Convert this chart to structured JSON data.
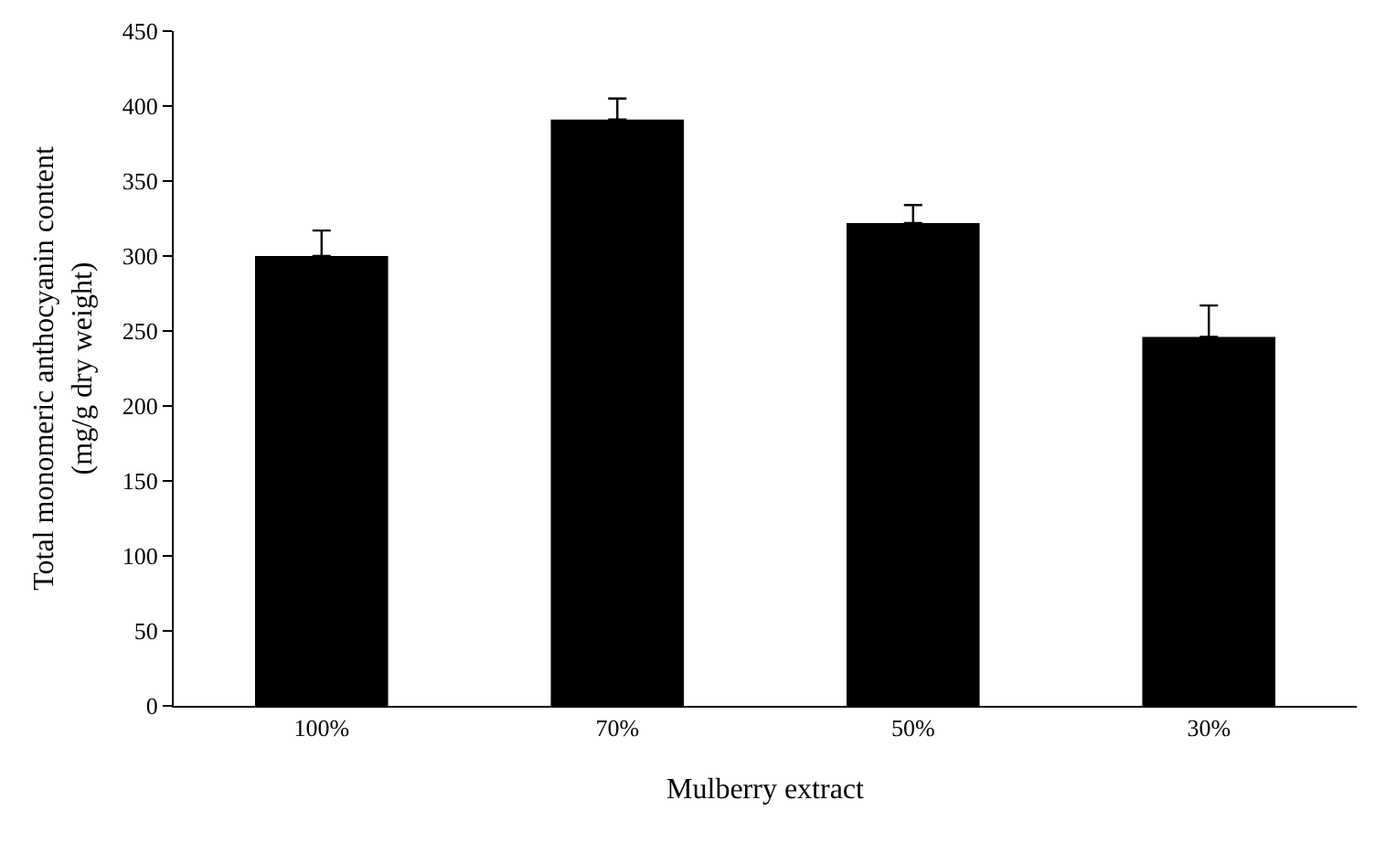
{
  "chart_data": {
    "type": "bar",
    "xlabel": "Mulberry extract",
    "ylabel": "Total monomeric anthocyanin content\n(mg/g dry weight)",
    "categories": [
      "100%",
      "70%",
      "50%",
      "30%"
    ],
    "values": [
      300,
      391,
      322,
      246
    ],
    "color": "#000000",
    "errors": [
      [
        300,
        317
      ],
      [
        391,
        405
      ],
      [
        322,
        334
      ],
      [
        246,
        267
      ]
    ],
    "ylim": [
      0,
      450
    ],
    "yticks": [
      0,
      50,
      100,
      150,
      200,
      250,
      300,
      350,
      400,
      450
    ]
  }
}
